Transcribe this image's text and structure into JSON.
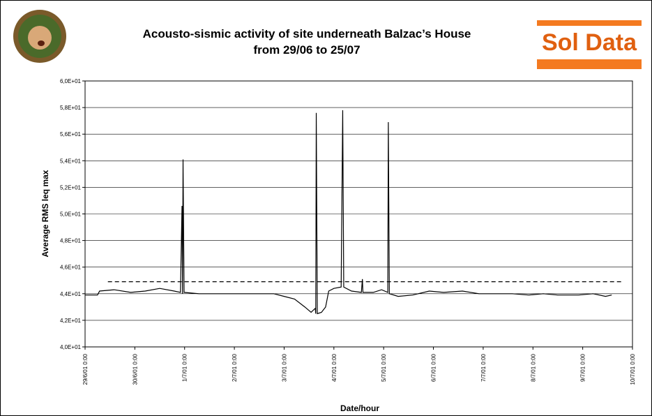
{
  "header": {
    "logo_text": "Sol Data"
  },
  "chart_data": {
    "type": "line",
    "title": "Acousto-sismic activity of site underneath Balzac’s House",
    "subtitle": "from 29/06 to 25/07",
    "x_label": "Date/hour",
    "y_label": "Average RMS leq max",
    "xlim": [
      "2001-06-29T00:00",
      "2001-07-10T00:00"
    ],
    "xticks": [
      {
        "value": "2001-06-29T00:00",
        "label": "29/6/01 0:00"
      },
      {
        "value": "2001-06-30T00:00",
        "label": "30/6/01 0:00"
      },
      {
        "value": "2001-07-01T00:00",
        "label": "1/7/01 0:00"
      },
      {
        "value": "2001-07-02T00:00",
        "label": "2/7/01 0:00"
      },
      {
        "value": "2001-07-03T00:00",
        "label": "3/7/01 0:00"
      },
      {
        "value": "2001-07-04T00:00",
        "label": "4/7/01 0:00"
      },
      {
        "value": "2001-07-05T00:00",
        "label": "5/7/01 0:00"
      },
      {
        "value": "2001-07-06T00:00",
        "label": "6/7/01 0:00"
      },
      {
        "value": "2001-07-07T00:00",
        "label": "7/7/01 0:00"
      },
      {
        "value": "2001-07-08T00:00",
        "label": "8/7/01 0:00"
      },
      {
        "value": "2001-07-09T00:00",
        "label": "9/7/01 0:00"
      },
      {
        "value": "2001-07-10T00:00",
        "label": "10/7/01 0:00"
      }
    ],
    "ylim": [
      40,
      60
    ],
    "yticks": [
      {
        "value": 40,
        "label": "4,0E+01"
      },
      {
        "value": 42,
        "label": "4,2E+01"
      },
      {
        "value": 44,
        "label": "4,4E+01"
      },
      {
        "value": 46,
        "label": "4,6E+01"
      },
      {
        "value": 48,
        "label": "4,8E+01"
      },
      {
        "value": 50,
        "label": "5,0E+01"
      },
      {
        "value": 52,
        "label": "5,2E+01"
      },
      {
        "value": 54,
        "label": "5,4E+01"
      },
      {
        "value": 56,
        "label": "5,6E+01"
      },
      {
        "value": 58,
        "label": "5,8E+01"
      },
      {
        "value": 60,
        "label": "6,0E+01"
      }
    ],
    "grid": true,
    "series": [
      {
        "color": "#000000",
        "x": [
          "2001-06-29T00:00",
          "2001-06-29T06:00",
          "2001-06-29T07:00",
          "2001-06-29T14:00",
          "2001-06-29T22:00",
          "2001-06-30T05:00",
          "2001-06-30T12:00",
          "2001-06-30T19:00",
          "2001-06-30T22:00",
          "2001-06-30T22:45",
          "2001-06-30T23:00",
          "2001-06-30T23:15",
          "2001-06-30T23:45",
          "2001-07-01T07:00",
          "2001-07-01T17:00",
          "2001-07-02T00:00",
          "2001-07-02T10:00",
          "2001-07-02T19:00",
          "2001-07-03T00:00",
          "2001-07-03T05:00",
          "2001-07-03T10:00",
          "2001-07-03T13:00",
          "2001-07-03T15:00",
          "2001-07-03T15:15",
          "2001-07-03T15:30",
          "2001-07-03T16:00",
          "2001-07-03T18:00",
          "2001-07-03T20:00",
          "2001-07-03T21:30",
          "2001-07-04T00:00",
          "2001-07-04T03:30",
          "2001-07-04T04:15",
          "2001-07-04T04:45",
          "2001-07-04T08:30",
          "2001-07-04T13:15",
          "2001-07-04T13:45",
          "2001-07-04T14:00",
          "2001-07-04T19:00",
          "2001-07-04T23:00",
          "2001-07-05T02:00",
          "2001-07-05T02:15",
          "2001-07-05T02:45",
          "2001-07-05T07:00",
          "2001-07-05T14:00",
          "2001-07-05T22:00",
          "2001-07-06T05:00",
          "2001-07-06T14:00",
          "2001-07-06T22:00",
          "2001-07-07T05:00",
          "2001-07-07T14:00",
          "2001-07-07T22:00",
          "2001-07-08T05:00",
          "2001-07-08T12:00",
          "2001-07-08T17:00",
          "2001-07-08T22:00",
          "2001-07-09T05:00",
          "2001-07-09T11:00",
          "2001-07-09T14:00"
        ],
        "values": [
          43.9,
          43.9,
          44.2,
          44.3,
          44.1,
          44.2,
          44.4,
          44.2,
          44.1,
          50.6,
          44.0,
          54.1,
          44.1,
          44.0,
          44.0,
          44.0,
          44.0,
          44.0,
          43.8,
          43.6,
          43.0,
          42.6,
          42.9,
          42.5,
          57.6,
          42.5,
          42.6,
          43.0,
          44.2,
          44.4,
          44.5,
          57.8,
          44.5,
          44.2,
          44.1,
          45.1,
          44.1,
          44.1,
          44.3,
          44.1,
          56.9,
          44.0,
          43.8,
          43.9,
          44.2,
          44.1,
          44.2,
          44.0,
          44.0,
          44.0,
          43.9,
          44.0,
          43.9,
          43.9,
          43.9,
          44.0,
          43.8,
          43.9
        ]
      },
      {
        "color": "#000000",
        "dash": "6 4",
        "x": [
          "2001-06-29T11:00",
          "2001-07-09T19:00"
        ],
        "values": [
          44.9,
          44.9
        ]
      }
    ]
  }
}
